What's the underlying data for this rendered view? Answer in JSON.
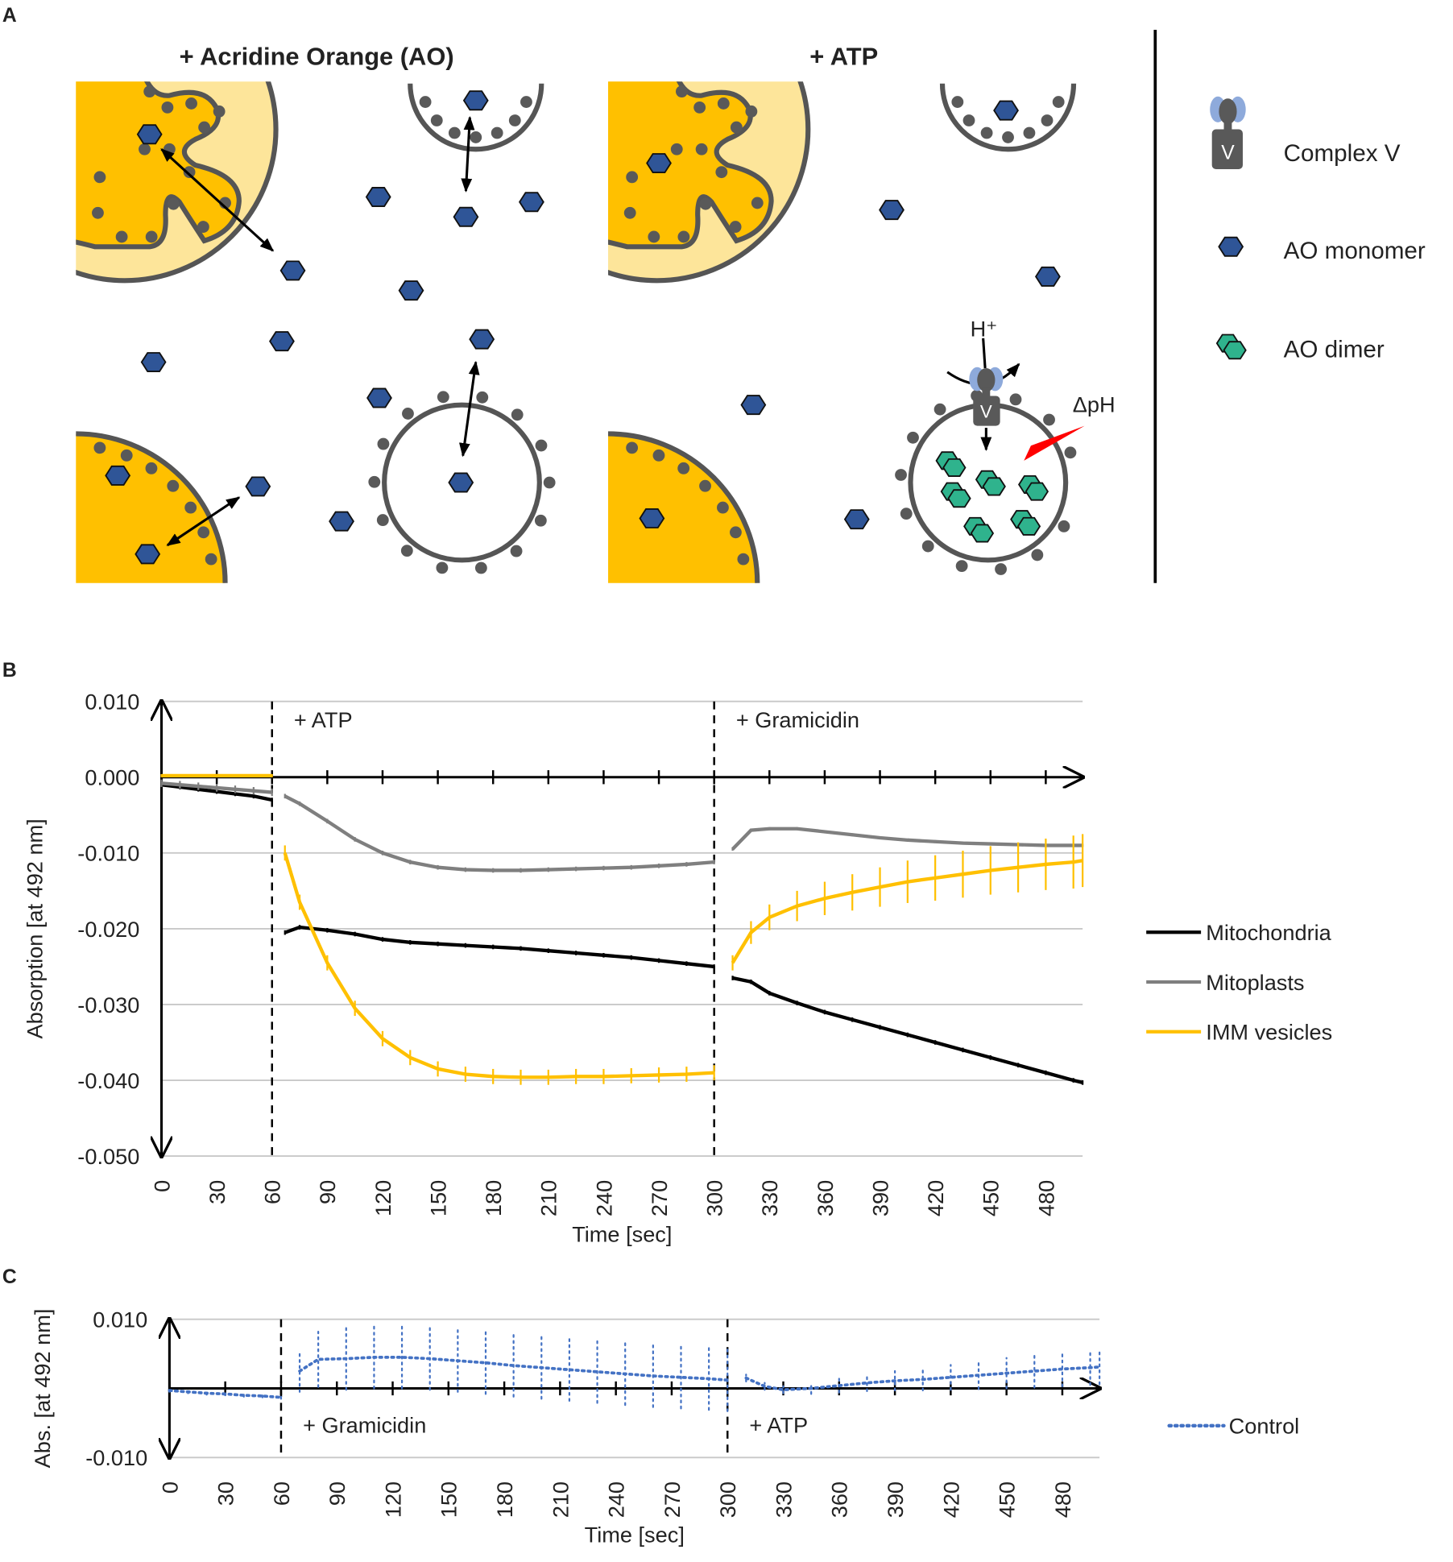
{
  "diagram": {
    "panel_label": "A",
    "left_title": "+ Acridine Orange (AO)",
    "right_title": "+ ATP",
    "legend": [
      "Complex V",
      "AO monomer",
      "AO dimer"
    ],
    "proton": "H⁺",
    "delta_ph": "ΔpH",
    "complex_label": "V"
  },
  "chart_data": [
    {
      "type": "line",
      "panel": "B",
      "x_label": "Time [sec]",
      "y_label": "Absorption [at 492 nm]",
      "x": [
        0,
        10,
        20,
        30,
        40,
        50,
        60,
        63,
        67,
        75,
        90,
        105,
        120,
        135,
        150,
        165,
        180,
        195,
        210,
        225,
        240,
        255,
        270,
        285,
        300,
        305,
        310,
        320,
        330,
        345,
        360,
        375,
        390,
        405,
        420,
        435,
        450,
        465,
        480,
        495,
        500
      ],
      "series": [
        {
          "name": "Mitochondria",
          "color": "#000000",
          "values": [
            -0.001,
            -0.0013,
            -0.0016,
            -0.0019,
            -0.0022,
            -0.0025,
            -0.003,
            null,
            -0.0205,
            -0.0198,
            -0.0202,
            -0.0207,
            -0.0214,
            -0.0218,
            -0.022,
            -0.0222,
            -0.0224,
            -0.0226,
            -0.0229,
            -0.0232,
            -0.0235,
            -0.0238,
            -0.0242,
            -0.0246,
            -0.025,
            null,
            -0.0265,
            -0.027,
            -0.0285,
            -0.0298,
            -0.031,
            -0.032,
            -0.033,
            -0.034,
            -0.035,
            -0.036,
            -0.037,
            -0.038,
            -0.039,
            -0.04,
            -0.0403
          ],
          "errors": [
            0.0003,
            0.0003,
            0.0003,
            0.0003,
            0.0003,
            0.0003,
            0.0003,
            null,
            0.0003,
            0.0003,
            0.0003,
            0.0003,
            0.0003,
            0.0003,
            0.0003,
            0.0003,
            0.0003,
            0.0003,
            0.0003,
            0.0003,
            0.0003,
            0.0003,
            0.0003,
            0.0003,
            0.0003,
            null,
            0.0003,
            0.0003,
            0.0003,
            0.0003,
            0.0003,
            0.0003,
            0.0003,
            0.0003,
            0.0003,
            0.0003,
            0.0003,
            0.0003,
            0.0003,
            0.0003,
            0.0003
          ]
        },
        {
          "name": "Mitoplasts",
          "color": "#7f7f7f",
          "values": [
            -0.0008,
            -0.001,
            -0.0012,
            -0.0014,
            -0.0016,
            -0.0018,
            -0.002,
            null,
            -0.0025,
            -0.0035,
            -0.0058,
            -0.0082,
            -0.01,
            -0.0112,
            -0.0119,
            -0.0122,
            -0.0123,
            -0.0123,
            -0.0122,
            -0.0121,
            -0.012,
            -0.0119,
            -0.0117,
            -0.0115,
            -0.0112,
            null,
            -0.0095,
            -0.007,
            -0.0068,
            -0.0068,
            -0.0072,
            -0.0076,
            -0.008,
            -0.0083,
            -0.0085,
            -0.0087,
            -0.0088,
            -0.0089,
            -0.009,
            -0.009,
            -0.009
          ],
          "errors": [
            0.0005,
            0.0005,
            0.0005,
            0.0005,
            0.0005,
            0.0005,
            0.0005,
            null,
            0.0003,
            0.0003,
            0.0003,
            0.0003,
            0.0003,
            0.0003,
            0.0003,
            0.0003,
            0.0003,
            0.0003,
            0.0003,
            0.0003,
            0.0003,
            0.0003,
            0.0003,
            0.0003,
            0.0003,
            null,
            0.0002,
            0.0002,
            0.0002,
            0.0002,
            0.0002,
            0.0002,
            0.0002,
            0.0002,
            0.0002,
            0.0002,
            0.0002,
            0.0002,
            0.0002,
            0.0002,
            0.0002
          ]
        },
        {
          "name": "IMM vesicles",
          "color": "#ffc000",
          "values": [
            0.0002,
            0.0002,
            0.0002,
            0.0002,
            0.0002,
            0.0002,
            0.0002,
            null,
            -0.01,
            -0.0165,
            -0.0245,
            -0.0305,
            -0.0345,
            -0.037,
            -0.0385,
            -0.0392,
            -0.0395,
            -0.0396,
            -0.0396,
            -0.0395,
            -0.0395,
            -0.0394,
            -0.0393,
            -0.0392,
            -0.039,
            null,
            -0.0245,
            -0.0205,
            -0.0185,
            -0.017,
            -0.016,
            -0.0152,
            -0.0145,
            -0.0138,
            -0.0133,
            -0.0128,
            -0.0123,
            -0.0119,
            -0.0115,
            -0.0112,
            -0.011
          ],
          "errors": [
            0.0002,
            0.0002,
            0.0002,
            0.0002,
            0.0002,
            0.0002,
            0.0002,
            null,
            0.001,
            0.001,
            0.001,
            0.001,
            0.001,
            0.001,
            0.001,
            0.001,
            0.001,
            0.001,
            0.001,
            0.001,
            0.001,
            0.001,
            0.001,
            0.001,
            0.001,
            null,
            0.001,
            0.0015,
            0.0017,
            0.002,
            0.0022,
            0.0024,
            0.0026,
            0.0028,
            0.003,
            0.0031,
            0.0032,
            0.0033,
            0.0034,
            0.0035,
            0.0035
          ]
        }
      ],
      "events": [
        {
          "x": 60,
          "label": "+ ATP"
        },
        {
          "x": 300,
          "label": "+ Gramicidin"
        }
      ],
      "xlim": [
        0,
        500
      ],
      "xticks": [
        0,
        30,
        60,
        90,
        120,
        150,
        180,
        210,
        240,
        270,
        300,
        330,
        360,
        390,
        420,
        450,
        480
      ],
      "ylim": [
        -0.05,
        0.01
      ],
      "yticks": [
        {
          "value": -0.05,
          "label": "-0.050"
        },
        {
          "value": -0.04,
          "label": "-0.040"
        },
        {
          "value": -0.03,
          "label": "-0.030"
        },
        {
          "value": -0.02,
          "label": "-0.020"
        },
        {
          "value": -0.01,
          "label": "-0.010"
        },
        {
          "value": 0,
          "label": "0.000"
        },
        {
          "value": 0.01,
          "label": "0.010"
        }
      ],
      "grid": true,
      "legend": "right"
    },
    {
      "type": "line",
      "panel": "C",
      "x_label": "Time [sec]",
      "y_label": "Abs. [at 492 nm]",
      "x": [
        0,
        10,
        20,
        30,
        40,
        50,
        60,
        65,
        70,
        80,
        95,
        110,
        125,
        140,
        155,
        170,
        185,
        200,
        215,
        230,
        245,
        260,
        275,
        290,
        300,
        305,
        310,
        320,
        330,
        345,
        360,
        375,
        390,
        405,
        420,
        435,
        450,
        465,
        480,
        495,
        500
      ],
      "series": [
        {
          "name": "Control",
          "color": "#4472c4",
          "line_style": "dotted",
          "values": [
            -0.0003,
            -0.0005,
            -0.0007,
            -0.0008,
            -0.001,
            -0.0011,
            -0.0013,
            null,
            0.0025,
            0.0042,
            0.0043,
            0.0045,
            0.0045,
            0.0043,
            0.004,
            0.0037,
            0.0033,
            0.003,
            0.0027,
            0.0024,
            0.0021,
            0.0018,
            0.0016,
            0.0014,
            0.0012,
            null,
            0.0015,
            0.0003,
            -0.0002,
            0,
            0.0004,
            0.0008,
            0.0011,
            0.0013,
            0.0016,
            0.0019,
            0.0022,
            0.0025,
            0.0028,
            0.003,
            0.0031
          ],
          "errors": [
            0.0002,
            0.0002,
            0.0002,
            0.0002,
            0.0002,
            0.0002,
            0.0002,
            null,
            0.003,
            0.004,
            0.0045,
            0.0045,
            0.0045,
            0.0045,
            0.0045,
            0.0045,
            0.0045,
            0.0045,
            0.0045,
            0.0045,
            0.0045,
            0.0045,
            0.0045,
            0.0045,
            0.0045,
            null,
            0.0005,
            0.0005,
            0.0005,
            0.0008,
            0.001,
            0.0012,
            0.0014,
            0.0016,
            0.0018,
            0.002,
            0.0022,
            0.0024,
            0.0025,
            0.0025,
            0.0025
          ]
        }
      ],
      "events": [
        {
          "x": 60,
          "label": "+ Gramicidin"
        },
        {
          "x": 300,
          "label": "+ ATP"
        }
      ],
      "xlim": [
        0,
        500
      ],
      "xticks": [
        0,
        30,
        60,
        90,
        120,
        150,
        180,
        210,
        240,
        270,
        300,
        330,
        360,
        390,
        420,
        450,
        480
      ],
      "ylim": [
        -0.01,
        0.01
      ],
      "yticks": [
        {
          "value": -0.01,
          "label": "-0.010"
        },
        {
          "value": 0.01,
          "label": "0.010"
        }
      ],
      "grid": true,
      "legend": "right"
    }
  ]
}
